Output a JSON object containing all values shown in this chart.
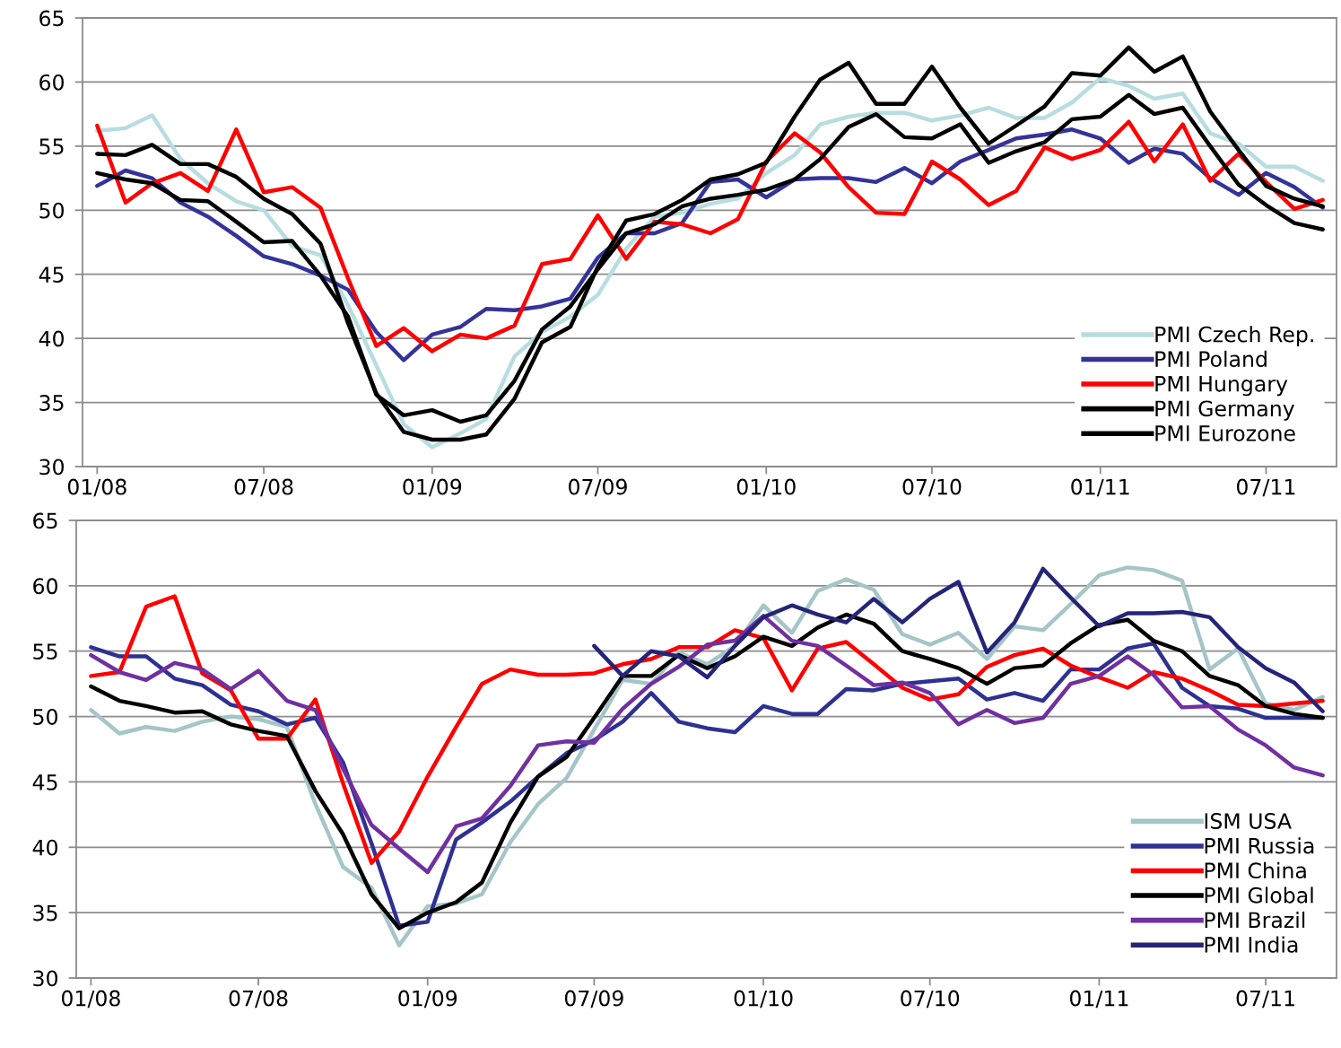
{
  "chart_data": [
    {
      "type": "line",
      "x": [
        "2008-01",
        "2008-02",
        "2008-03",
        "2008-04",
        "2008-05",
        "2008-06",
        "2008-07",
        "2008-08",
        "2008-09",
        "2008-10",
        "2008-11",
        "2008-12",
        "2009-01",
        "2009-02",
        "2009-03",
        "2009-04",
        "2009-05",
        "2009-06",
        "2009-07",
        "2009-08",
        "2009-09",
        "2009-10",
        "2009-11",
        "2009-12",
        "2010-01",
        "2010-02",
        "2010-03",
        "2010-04",
        "2010-05",
        "2010-06",
        "2010-07",
        "2010-08",
        "2010-09",
        "2010-10",
        "2010-11",
        "2010-12",
        "2011-01",
        "2011-02",
        "2011-03",
        "2011-04",
        "2011-05",
        "2011-06",
        "2011-07",
        "2011-08",
        "2011-09"
      ],
      "xlim": [
        "2007-12-16",
        "2011-09-16"
      ],
      "xticks": [
        {
          "value": "2008-01",
          "label": "01/08"
        },
        {
          "value": "2008-07",
          "label": "07/08"
        },
        {
          "value": "2009-01",
          "label": "01/09"
        },
        {
          "value": "2009-07",
          "label": "07/09"
        },
        {
          "value": "2010-01",
          "label": "01/10"
        },
        {
          "value": "2010-07",
          "label": "07/10"
        },
        {
          "value": "2011-01",
          "label": "01/11"
        },
        {
          "value": "2011-07",
          "label": "07/11"
        }
      ],
      "ylim": [
        30,
        65
      ],
      "yticks": [
        30,
        35,
        40,
        45,
        50,
        55,
        60,
        65
      ],
      "grid": "y",
      "legend": "bottom right",
      "marker": "none",
      "line_style": "solid",
      "series": [
        {
          "name": "PMI Czech Rep.",
          "color": "#b7dde0",
          "values": [
            56.2,
            56.4,
            57.4,
            54.0,
            52.1,
            50.7,
            50.0,
            47.2,
            46.5,
            42.6,
            37.9,
            33.3,
            31.5,
            32.6,
            33.7,
            38.6,
            40.5,
            41.7,
            43.4,
            47.0,
            49.5,
            49.8,
            50.5,
            50.9,
            52.9,
            54.3,
            56.7,
            57.3,
            57.6,
            57.6,
            57.0,
            57.4,
            58.0,
            57.2,
            57.2,
            58.4,
            60.3,
            59.7,
            58.7,
            59.1,
            56.0,
            55.2,
            53.4,
            53.4,
            52.3
          ]
        },
        {
          "name": "PMI Poland",
          "color": "#333399",
          "values": [
            51.9,
            53.1,
            52.5,
            50.6,
            49.5,
            48.0,
            46.4,
            45.8,
            44.9,
            43.8,
            40.5,
            38.3,
            40.3,
            40.9,
            42.3,
            42.2,
            42.5,
            43.1,
            46.3,
            48.2,
            48.2,
            49.0,
            52.2,
            52.4,
            51.0,
            52.4,
            52.5,
            52.5,
            52.2,
            53.3,
            52.1,
            53.8,
            54.7,
            55.6,
            55.9,
            56.3,
            55.6,
            53.7,
            54.8,
            54.4,
            52.5,
            51.2,
            52.9,
            51.8,
            50.2
          ]
        },
        {
          "name": "PMI Hungary",
          "color": "#ff0000",
          "values": [
            56.6,
            50.6,
            52.1,
            52.9,
            51.5,
            56.3,
            51.4,
            51.8,
            50.2,
            44.7,
            39.4,
            40.8,
            39.0,
            40.3,
            40.0,
            41.0,
            45.8,
            46.2,
            49.6,
            46.2,
            49.1,
            48.9,
            48.2,
            49.3,
            53.8,
            56.0,
            54.5,
            51.8,
            49.8,
            49.7,
            53.8,
            52.4,
            50.4,
            51.5,
            54.9,
            54.0,
            54.7,
            56.9,
            53.8,
            56.7,
            52.3,
            54.4,
            52.2,
            50.1,
            50.8
          ]
        },
        {
          "name": "PMI Germany",
          "color": "#000000",
          "values": [
            54.4,
            54.3,
            55.1,
            53.6,
            53.6,
            52.6,
            50.9,
            49.7,
            47.4,
            41.2,
            35.7,
            32.7,
            32.1,
            32.1,
            32.5,
            35.3,
            39.7,
            40.9,
            45.6,
            49.2,
            49.7,
            50.8,
            52.4,
            52.8,
            53.7,
            57.3,
            60.2,
            61.5,
            58.3,
            58.3,
            61.2,
            58.0,
            55.2,
            56.6,
            58.1,
            60.7,
            60.5,
            62.7,
            60.8,
            62.0,
            57.7,
            54.7,
            51.9,
            50.9,
            50.3
          ]
        },
        {
          "name": "PMI Eurozone",
          "color": "#000000",
          "values": [
            52.9,
            52.4,
            52.1,
            50.8,
            50.7,
            49.1,
            47.5,
            47.6,
            44.9,
            41.7,
            35.6,
            34.0,
            34.4,
            33.5,
            34.0,
            36.7,
            40.7,
            42.5,
            45.4,
            48.2,
            48.9,
            50.3,
            50.9,
            51.2,
            51.6,
            52.4,
            54.0,
            56.5,
            57.5,
            55.7,
            55.6,
            56.7,
            53.7,
            54.6,
            55.3,
            57.1,
            57.3,
            59.0,
            57.5,
            58.0,
            55.0,
            52.0,
            50.4,
            49.0,
            48.5
          ]
        }
      ]
    },
    {
      "type": "line",
      "x": [
        "2008-01",
        "2008-02",
        "2008-03",
        "2008-04",
        "2008-05",
        "2008-06",
        "2008-07",
        "2008-08",
        "2008-09",
        "2008-10",
        "2008-11",
        "2008-12",
        "2009-01",
        "2009-02",
        "2009-03",
        "2009-04",
        "2009-05",
        "2009-06",
        "2009-07",
        "2009-08",
        "2009-09",
        "2009-10",
        "2009-11",
        "2009-12",
        "2010-01",
        "2010-02",
        "2010-03",
        "2010-04",
        "2010-05",
        "2010-06",
        "2010-07",
        "2010-08",
        "2010-09",
        "2010-10",
        "2010-11",
        "2010-12",
        "2011-01",
        "2011-02",
        "2011-03",
        "2011-04",
        "2011-05",
        "2011-06",
        "2011-07",
        "2011-08",
        "2011-09"
      ],
      "xlim": [
        "2007-12-16",
        "2011-09-16"
      ],
      "xticks": [
        {
          "value": "2008-01",
          "label": "01/08"
        },
        {
          "value": "2008-07",
          "label": "07/08"
        },
        {
          "value": "2009-01",
          "label": "01/09"
        },
        {
          "value": "2009-07",
          "label": "07/09"
        },
        {
          "value": "2010-01",
          "label": "01/10"
        },
        {
          "value": "2010-07",
          "label": "07/10"
        },
        {
          "value": "2011-01",
          "label": "01/11"
        },
        {
          "value": "2011-07",
          "label": "07/11"
        }
      ],
      "ylim": [
        30,
        65
      ],
      "yticks": [
        30,
        35,
        40,
        45,
        50,
        55,
        60,
        65
      ],
      "grid": "y",
      "legend": "bottom right",
      "marker": "none",
      "line_style": "solid",
      "series": [
        {
          "name": "ISM USA",
          "color": "#a5c5c8",
          "values": [
            50.5,
            48.7,
            49.2,
            48.9,
            49.6,
            50.0,
            49.8,
            49.2,
            43.3,
            38.5,
            36.9,
            32.5,
            35.5,
            35.7,
            36.4,
            40.4,
            43.3,
            45.3,
            49.0,
            52.8,
            52.5,
            54.9,
            54.0,
            55.4,
            58.5,
            56.4,
            59.6,
            60.5,
            59.7,
            56.3,
            55.5,
            56.4,
            54.4,
            56.9,
            56.6,
            58.6,
            60.8,
            61.4,
            61.2,
            60.4,
            53.6,
            55.2,
            51.0,
            50.5,
            51.5
          ]
        },
        {
          "name": "PMI Russia",
          "color": "#2e3192",
          "values": [
            55.3,
            54.6,
            54.6,
            52.9,
            52.4,
            50.9,
            50.4,
            49.4,
            49.9,
            46.5,
            40.3,
            34.0,
            34.3,
            40.6,
            41.9,
            43.5,
            45.4,
            47.2,
            48.2,
            49.6,
            51.8,
            49.6,
            49.1,
            48.8,
            50.8,
            50.2,
            50.2,
            52.1,
            52.0,
            52.5,
            52.7,
            52.9,
            51.3,
            51.8,
            51.2,
            53.6,
            53.6,
            55.2,
            55.6,
            52.2,
            50.8,
            50.6,
            49.9,
            49.9,
            49.9
          ]
        },
        {
          "name": "PMI China",
          "color": "#ff0000",
          "values": [
            53.1,
            53.4,
            58.4,
            59.2,
            53.3,
            52.0,
            48.3,
            48.3,
            51.3,
            44.9,
            38.8,
            41.2,
            45.4,
            49.2,
            52.5,
            53.6,
            53.2,
            53.2,
            53.3,
            54.0,
            54.4,
            55.3,
            55.3,
            56.6,
            56.0,
            52.0,
            55.2,
            55.7,
            54.0,
            52.2,
            51.3,
            51.7,
            53.8,
            54.7,
            55.2,
            53.9,
            53.0,
            52.2,
            53.4,
            52.9,
            52.0,
            50.9,
            50.8,
            51.0,
            51.2
          ]
        },
        {
          "name": "PMI Global",
          "color": "#000000",
          "values": [
            52.3,
            51.2,
            50.8,
            50.3,
            50.4,
            49.4,
            48.9,
            48.5,
            44.3,
            41.0,
            36.4,
            33.8,
            35.0,
            35.8,
            37.3,
            41.9,
            45.4,
            46.9,
            49.9,
            53.1,
            53.1,
            54.7,
            53.7,
            54.6,
            56.1,
            55.4,
            56.8,
            57.8,
            57.1,
            55.0,
            54.4,
            53.7,
            52.5,
            53.7,
            53.9,
            55.6,
            57.0,
            57.4,
            55.8,
            55.0,
            53.1,
            52.4,
            50.8,
            50.2,
            49.9
          ]
        },
        {
          "name": "PMI Brazil",
          "color": "#7030a0",
          "values": [
            54.7,
            53.4,
            52.8,
            54.1,
            53.6,
            52.1,
            53.5,
            51.2,
            50.5,
            46.0,
            41.7,
            39.9,
            38.1,
            41.6,
            42.2,
            44.7,
            47.8,
            48.1,
            48.0,
            50.6,
            52.5,
            53.8,
            55.5,
            55.8,
            57.7,
            55.8,
            55.4,
            53.9,
            52.4,
            52.6,
            51.8,
            49.4,
            50.5,
            49.5,
            49.9,
            52.5,
            53.1,
            54.6,
            53.2,
            50.7,
            50.8,
            49.0,
            47.8,
            46.1,
            45.5
          ]
        },
        {
          "name": "PMI India",
          "color": "#242478",
          "values": [
            null,
            null,
            null,
            null,
            null,
            null,
            null,
            null,
            null,
            null,
            null,
            null,
            null,
            null,
            null,
            null,
            null,
            null,
            55.4,
            53.1,
            55.0,
            54.6,
            53.0,
            55.4,
            57.6,
            58.5,
            57.8,
            57.2,
            59.0,
            57.2,
            59.0,
            60.3,
            54.9,
            57.2,
            61.3,
            59.1,
            56.9,
            57.9,
            57.9,
            58.0,
            57.6,
            55.3,
            53.7,
            52.6,
            50.4
          ]
        }
      ]
    }
  ]
}
